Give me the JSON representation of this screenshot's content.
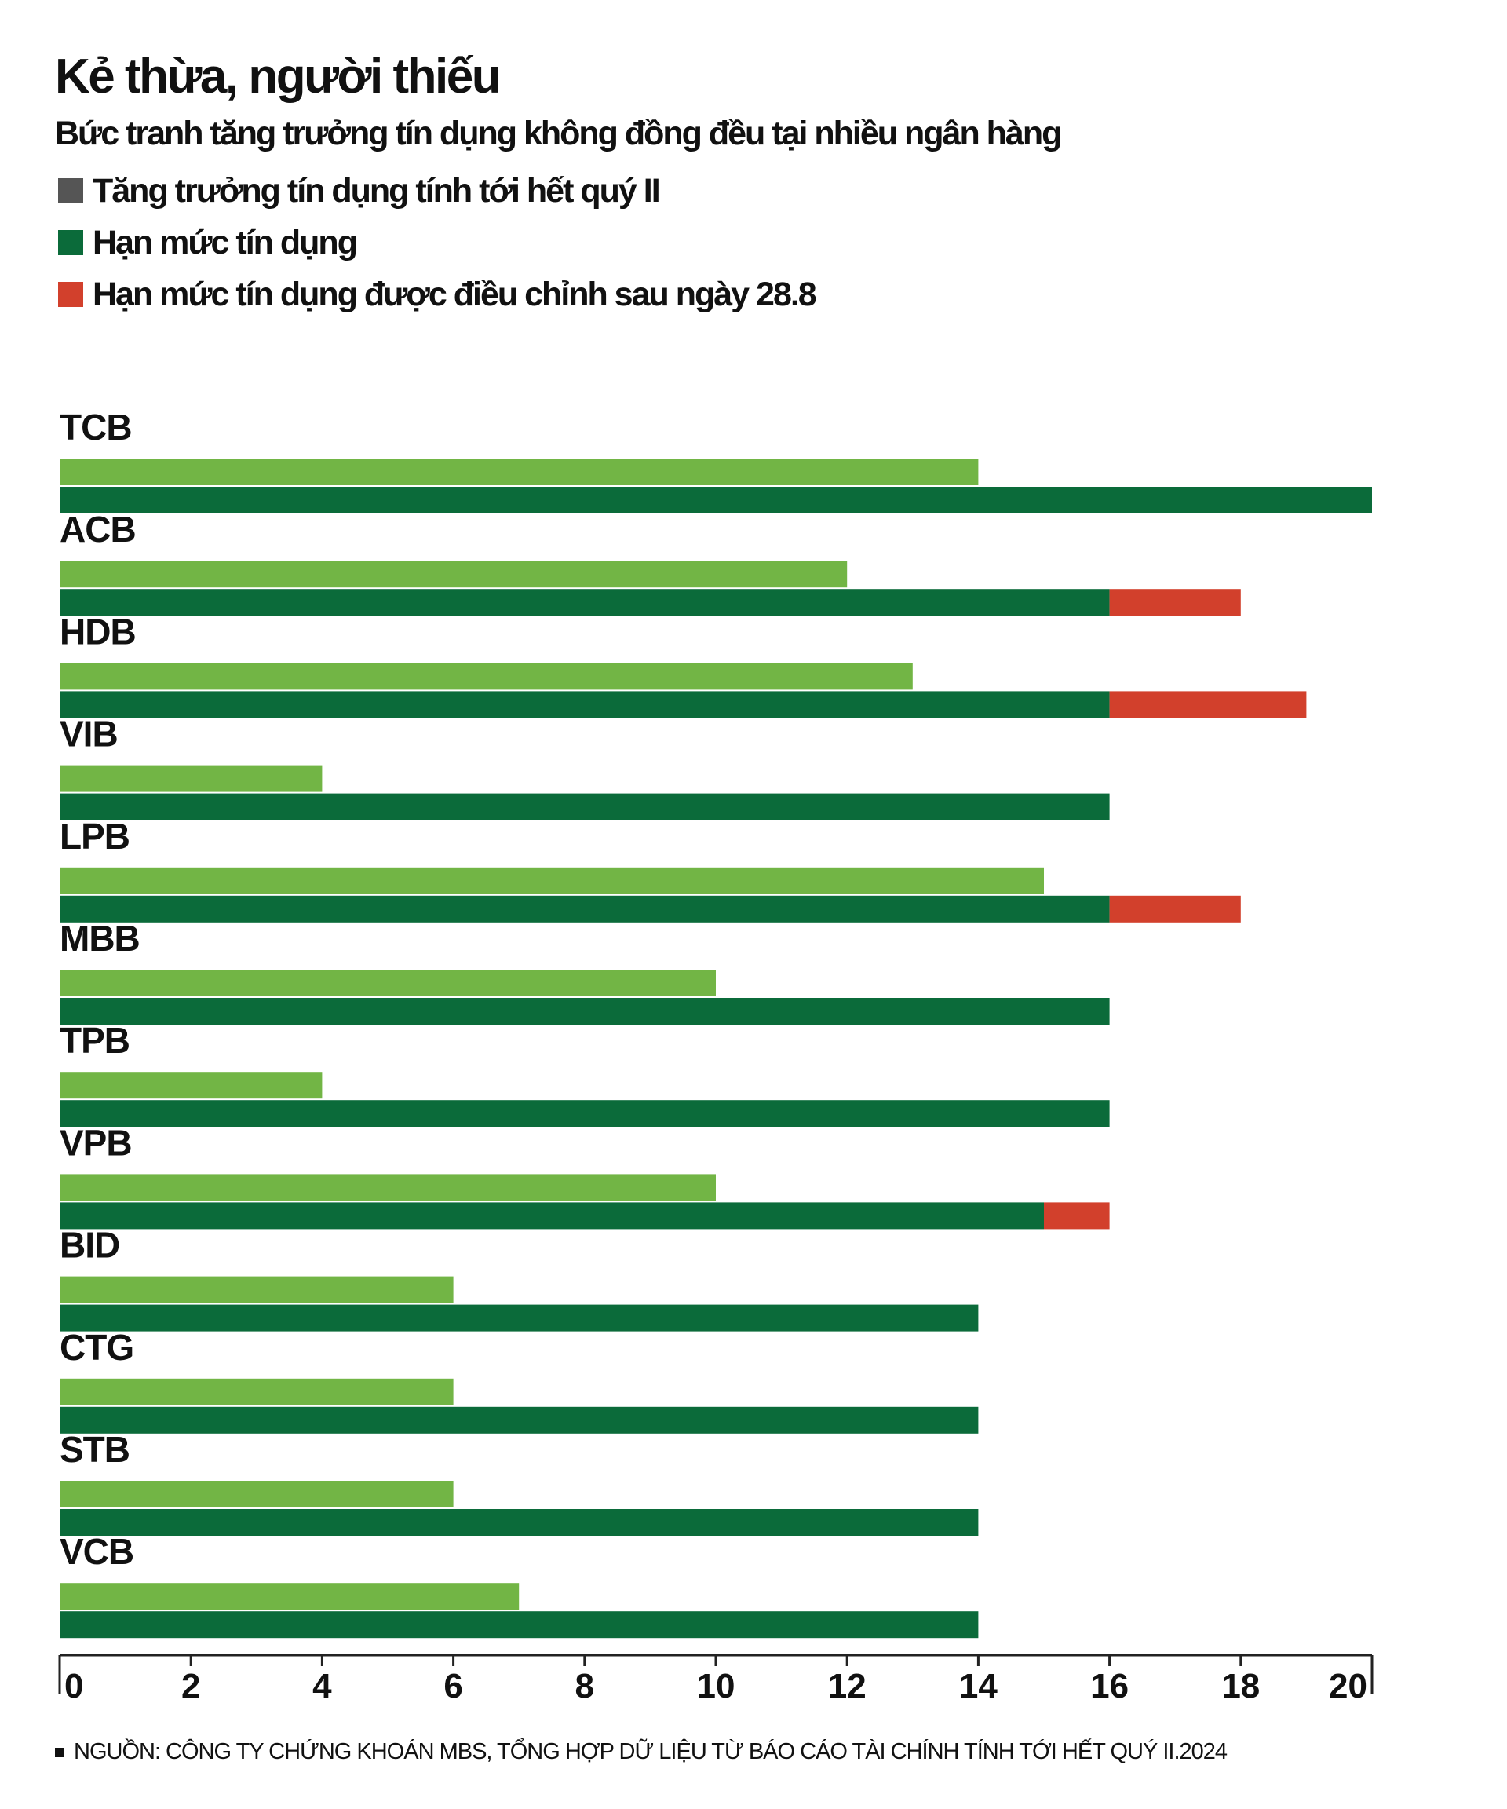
{
  "title": "Kẻ thừa, người thiếu",
  "subtitle": "Bức tranh tăng trưởng tín dụng không đồng đều tại nhiều ngân hàng",
  "legend": [
    {
      "label": "Tăng trưởng tín dụng tính tới hết quý II",
      "color": "#555555"
    },
    {
      "label": "Hạn mức tín dụng",
      "color": "#0b6b3a"
    },
    {
      "label": "Hạn mức tín dụng được điều chỉnh sau ngày 28.8",
      "color": "#d2402c"
    }
  ],
  "source": "NGUỒN: CÔNG TY CHỨNG KHOÁN MBS, TỔNG HỢP DỮ LIỆU TỪ BÁO CÁO TÀI CHÍNH TÍNH TỚI HẾT QUÝ II.2024",
  "colors": {
    "growth": "#72b545",
    "limit": "#0b6b3a",
    "adjusted": "#d2402c",
    "axis": "#222222"
  },
  "chart_data": {
    "type": "bar",
    "orientation": "horizontal",
    "categories": [
      "TCB",
      "ACB",
      "HDB",
      "VIB",
      "LPB",
      "MBB",
      "TPB",
      "VPB",
      "BID",
      "CTG",
      "STB",
      "VCB"
    ],
    "series": [
      {
        "name": "Tăng trưởng tín dụng tính tới hết quý II",
        "values": [
          14,
          12,
          13,
          4,
          15,
          10,
          4,
          10,
          6,
          6,
          6,
          7
        ]
      },
      {
        "name": "Hạn mức tín dụng",
        "values": [
          20,
          16,
          16,
          16,
          16,
          16,
          16,
          15,
          14,
          14,
          14,
          14
        ]
      },
      {
        "name": "Hạn mức tín dụng được điều chỉnh sau ngày 28.8",
        "values": [
          20,
          18,
          19,
          16,
          18,
          16,
          16,
          16,
          14,
          14,
          14,
          14
        ]
      }
    ],
    "xlim": [
      0,
      20
    ],
    "xticks": [
      "0",
      "2",
      "4",
      "6",
      "8",
      "10",
      "12",
      "14",
      "16",
      "18",
      "20"
    ],
    "grid": false,
    "legend_position": "top-left"
  }
}
